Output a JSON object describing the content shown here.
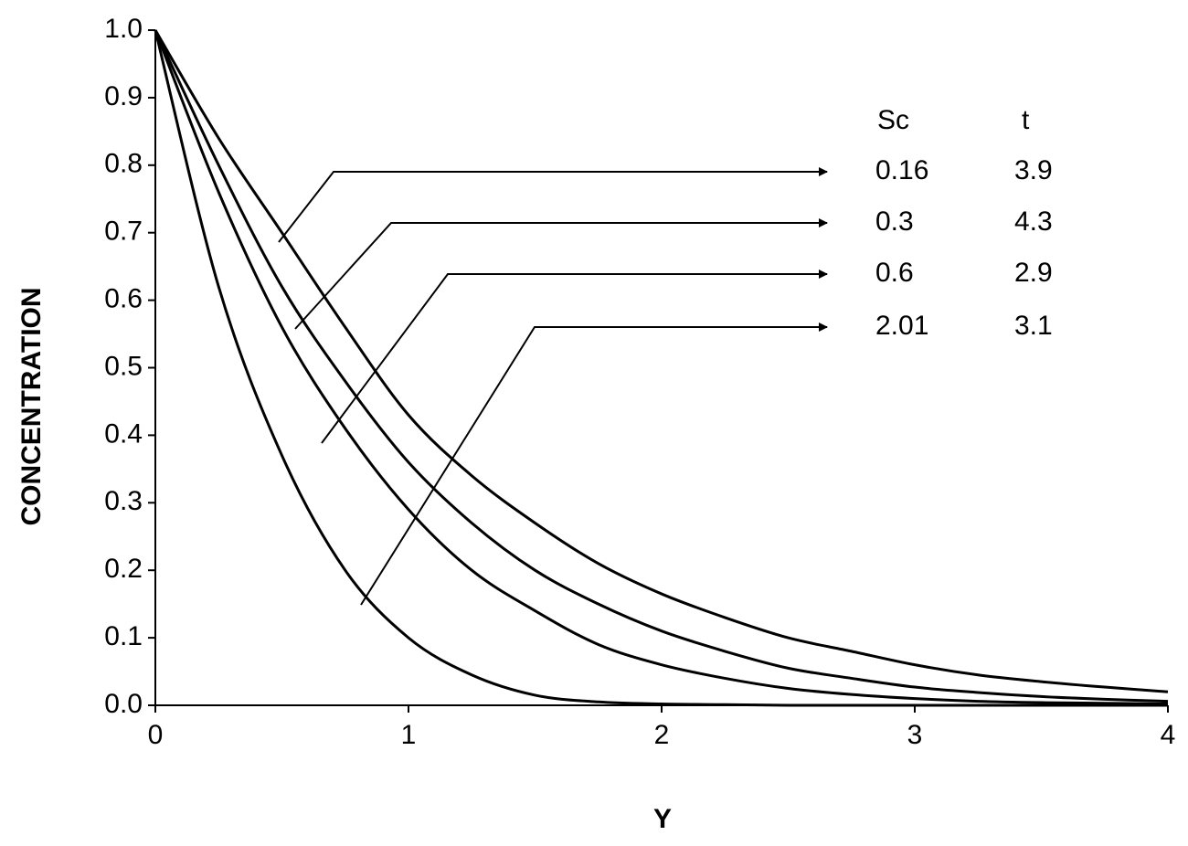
{
  "chart_data": {
    "type": "line",
    "x_label": "Y",
    "y_label": "CONCENTRATION",
    "x": [
      0,
      0.25,
      0.5,
      0.75,
      1,
      1.25,
      1.5,
      1.75,
      2,
      2.25,
      2.5,
      2.75,
      3,
      3.25,
      3.5,
      3.75,
      4
    ],
    "xlim": [
      0,
      4
    ],
    "xticks": [
      0,
      1,
      2,
      3,
      4
    ],
    "ylim": [
      0,
      1
    ],
    "yticks": [
      {
        "value": 0,
        "label": "0.0"
      },
      0.1,
      0.2,
      0.3,
      0.4,
      0.5,
      0.6,
      0.7,
      0.8,
      0.9,
      {
        "value": 1,
        "label": "1.0"
      }
    ],
    "grid": false,
    "legend_headers": [
      "Sc",
      "t"
    ],
    "series": [
      {
        "sc": 0.16,
        "t": 3.9,
        "color": "#000000",
        "values": [
          1,
          0.84,
          0.7,
          0.56,
          0.43,
          0.34,
          0.27,
          0.21,
          0.165,
          0.13,
          0.1,
          0.08,
          0.06,
          0.045,
          0.035,
          0.027,
          0.02
        ]
      },
      {
        "sc": 0.3,
        "t": 4.3,
        "color": "#000000",
        "values": [
          1,
          0.8,
          0.62,
          0.48,
          0.36,
          0.27,
          0.2,
          0.15,
          0.11,
          0.08,
          0.055,
          0.04,
          0.027,
          0.019,
          0.013,
          0.009,
          0.006
        ]
      },
      {
        "sc": 0.6,
        "t": 2.9,
        "color": "#000000",
        "values": [
          1,
          0.76,
          0.56,
          0.41,
          0.29,
          0.2,
          0.14,
          0.09,
          0.06,
          0.04,
          0.025,
          0.016,
          0.01,
          0.006,
          0.004,
          0.003,
          0.002
        ]
      },
      {
        "sc": 2.01,
        "t": 3.1,
        "color": "#000000",
        "values": [
          1,
          0.62,
          0.37,
          0.2,
          0.1,
          0.045,
          0.015,
          0.005,
          0.002,
          0.001,
          0,
          0,
          0,
          0,
          0,
          0,
          0
        ]
      }
    ]
  }
}
